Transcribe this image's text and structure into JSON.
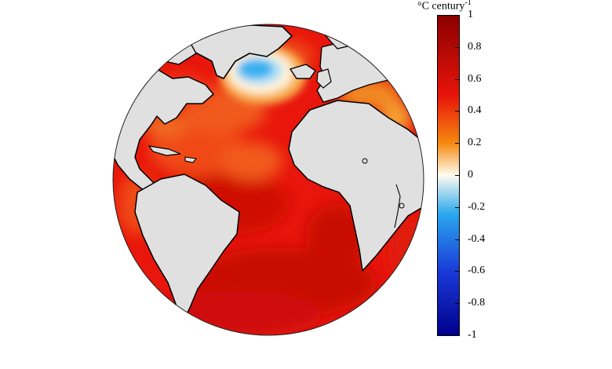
{
  "colorbar": {
    "unit_main": "°C century",
    "unit_exponent": "-1",
    "ticks": [
      "1",
      "0.8",
      "0.6",
      "0.4",
      "0.2",
      "0",
      "-0.2",
      "-0.4",
      "-0.6",
      "-0.8",
      "-1"
    ],
    "range": [
      -1,
      1
    ],
    "colors": {
      "max": "#8b0000",
      "high": "#e8140a",
      "mid_high": "#f58a10",
      "zero": "#fffcf0",
      "mid_low": "#2aa8ee",
      "low": "#1a3ad8",
      "min": "#00008b"
    }
  },
  "map": {
    "projection": "orthographic",
    "center": "Atlantic Ocean",
    "land_color": "#e0e0e0",
    "coast_color": "#000000"
  }
}
